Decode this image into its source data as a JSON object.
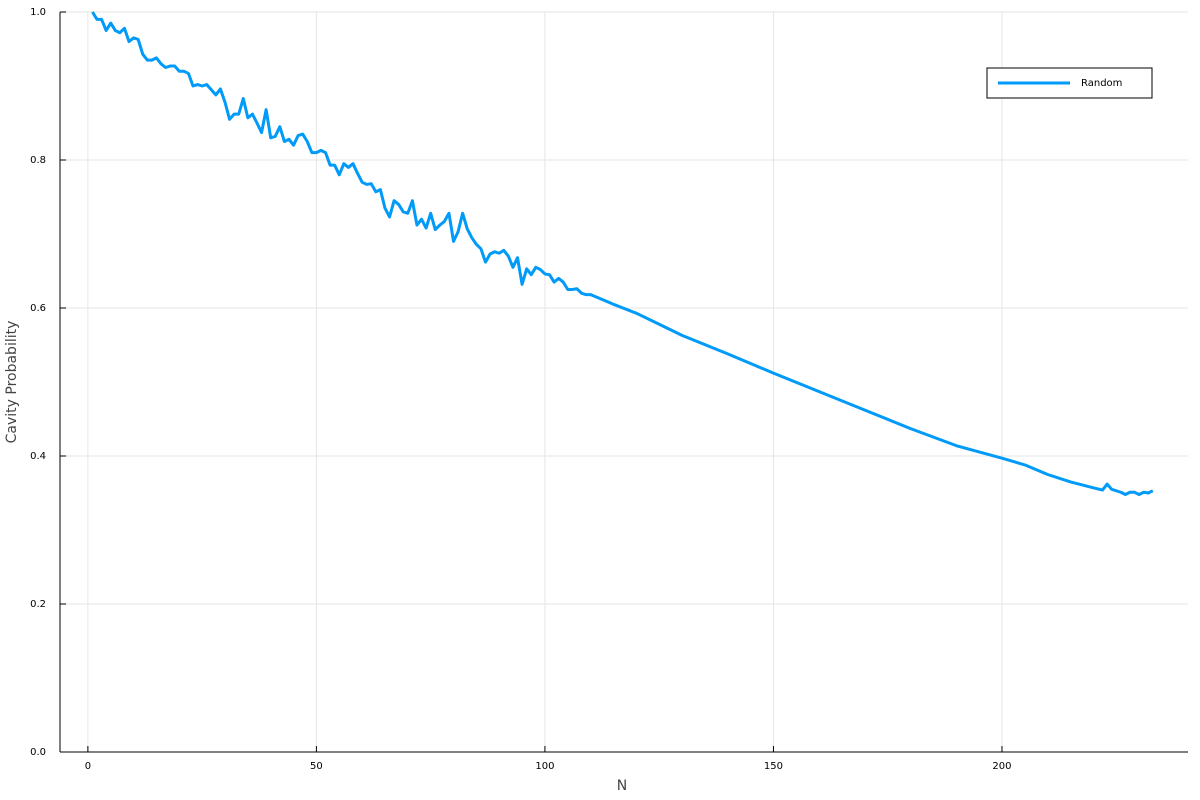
{
  "chart_data": {
    "type": "line",
    "xlabel": "N",
    "ylabel": "Cavity Probability",
    "xlim": [
      -6.1,
      240.7
    ],
    "ylim": [
      0,
      1
    ],
    "xticks": [
      0,
      50,
      100,
      150,
      200
    ],
    "yticks": [
      {
        "value": 0,
        "label": "0.0"
      },
      0.2,
      0.4,
      0.6,
      0.8,
      {
        "value": 1,
        "label": "1.0"
      }
    ],
    "grid": true,
    "legend": "top-right",
    "series": [
      {
        "name": "Random",
        "color": "#009af9",
        "x": [
          1,
          2,
          3,
          4,
          5,
          6,
          7,
          8,
          9,
          10,
          11,
          12,
          13,
          14,
          15,
          16,
          17,
          18,
          19,
          20,
          21,
          22,
          23,
          24,
          25,
          26,
          27,
          28,
          29,
          30,
          31,
          32,
          33,
          34,
          35,
          36,
          37,
          38,
          39,
          40,
          41,
          42,
          43,
          44,
          45,
          46,
          47,
          48,
          49,
          50,
          51,
          52,
          53,
          54,
          55,
          56,
          57,
          58,
          59,
          60,
          61,
          62,
          63,
          64,
          65,
          66,
          67,
          68,
          69,
          70,
          71,
          72,
          73,
          74,
          75,
          76,
          77,
          78,
          79,
          80,
          81,
          82,
          83,
          84,
          85,
          86,
          87,
          88,
          89,
          90,
          91,
          92,
          93,
          94,
          95,
          96,
          97,
          98,
          99,
          100,
          101,
          102,
          103,
          104,
          105,
          106,
          107,
          108,
          109,
          110,
          115,
          120,
          125,
          130,
          140,
          150,
          160,
          170,
          180,
          190,
          200,
          205,
          210,
          215,
          220,
          222,
          223,
          224,
          226,
          227,
          228,
          229,
          230,
          231,
          232,
          233
        ],
        "values": [
          1.0,
          0.99,
          0.99,
          0.975,
          0.985,
          0.975,
          0.972,
          0.978,
          0.96,
          0.965,
          0.963,
          0.943,
          0.935,
          0.935,
          0.938,
          0.93,
          0.925,
          0.927,
          0.927,
          0.92,
          0.92,
          0.917,
          0.9,
          0.902,
          0.9,
          0.902,
          0.895,
          0.888,
          0.896,
          0.878,
          0.855,
          0.862,
          0.862,
          0.883,
          0.857,
          0.862,
          0.85,
          0.837,
          0.868,
          0.83,
          0.832,
          0.845,
          0.825,
          0.828,
          0.82,
          0.833,
          0.835,
          0.825,
          0.81,
          0.81,
          0.813,
          0.81,
          0.793,
          0.793,
          0.78,
          0.795,
          0.79,
          0.795,
          0.782,
          0.77,
          0.767,
          0.768,
          0.757,
          0.76,
          0.735,
          0.723,
          0.745,
          0.74,
          0.73,
          0.728,
          0.745,
          0.712,
          0.72,
          0.708,
          0.728,
          0.706,
          0.712,
          0.717,
          0.728,
          0.69,
          0.703,
          0.728,
          0.707,
          0.695,
          0.686,
          0.68,
          0.662,
          0.673,
          0.676,
          0.674,
          0.678,
          0.67,
          0.655,
          0.668,
          0.632,
          0.653,
          0.645,
          0.655,
          0.652,
          0.646,
          0.645,
          0.635,
          0.64,
          0.635,
          0.625,
          0.625,
          0.626,
          0.62,
          0.618,
          0.618,
          0.605,
          0.593,
          0.578,
          0.563,
          0.538,
          0.512,
          0.487,
          0.462,
          0.437,
          0.414,
          0.397,
          0.388,
          0.375,
          0.365,
          0.357,
          0.354,
          0.362,
          0.355,
          0.351,
          0.348,
          0.351,
          0.351,
          0.348,
          0.351,
          0.35,
          0.353
        ]
      }
    ]
  }
}
